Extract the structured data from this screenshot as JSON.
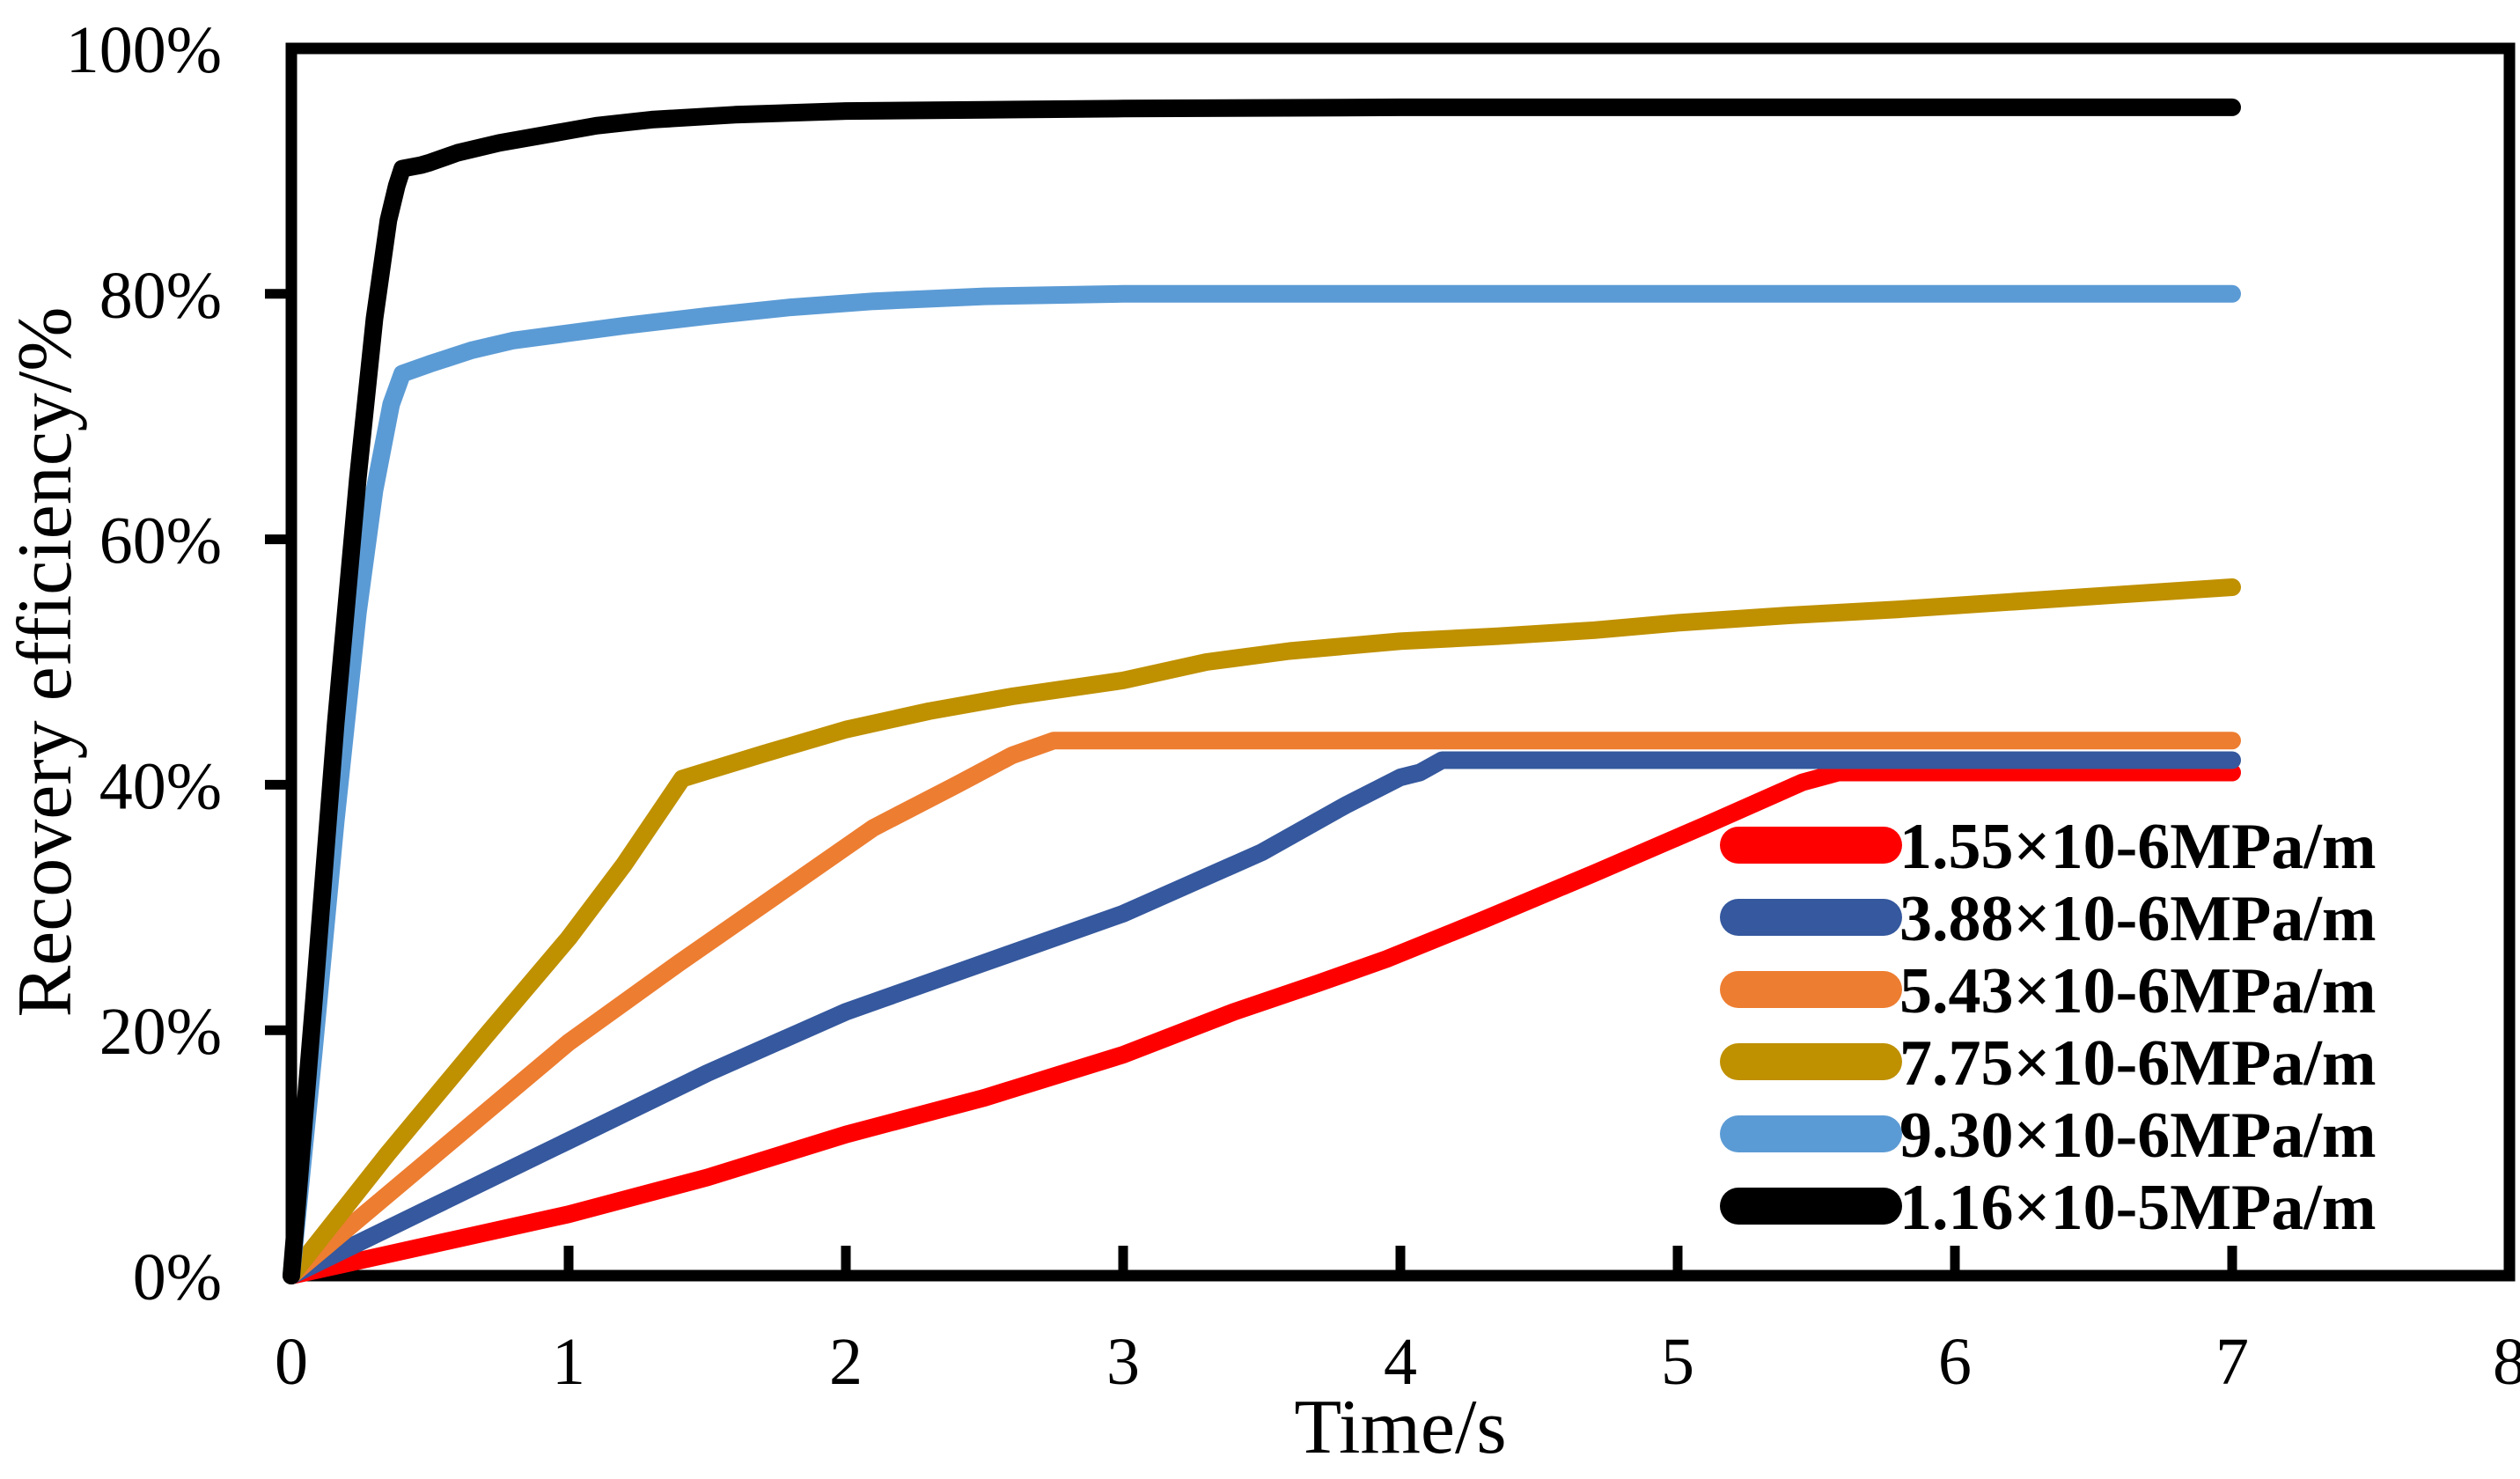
{
  "figure": {
    "background": "#FFFFFF",
    "frame_color": "#000000"
  },
  "chart_data": {
    "type": "line",
    "title": "",
    "xlabel": "Time/s",
    "ylabel": "Recovery efficiency/%",
    "xlim": [
      0,
      8
    ],
    "ylim": [
      0,
      100
    ],
    "grid": "off",
    "legend_position": "inside-right-middle",
    "x_ticks": [
      0,
      1,
      2,
      3,
      4,
      5,
      6,
      7,
      8
    ],
    "x_tick_labels": [
      "0",
      "1",
      "2",
      "3",
      "4",
      "5",
      "6",
      "7",
      "8"
    ],
    "x_minor_ticks": [
      1,
      2,
      3,
      4,
      5,
      6,
      7
    ],
    "y_ticks": [
      0,
      20,
      40,
      60,
      80,
      100
    ],
    "y_tick_labels": [
      "0%",
      "20%",
      "40%",
      "60%",
      "80%",
      "100%"
    ],
    "y_axis_tick_marks": [
      20,
      40,
      60,
      80
    ],
    "series": [
      {
        "name": "1.55×10-6MPa/m",
        "color": "#FF0000",
        "points": [
          [
            0,
            0
          ],
          [
            0.5,
            2.5
          ],
          [
            1,
            5
          ],
          [
            1.5,
            8
          ],
          [
            2,
            11.5
          ],
          [
            2.5,
            14.5
          ],
          [
            3,
            18
          ],
          [
            3.4,
            21.5
          ],
          [
            3.7,
            23.8
          ],
          [
            3.95,
            25.8
          ],
          [
            4.3,
            29
          ],
          [
            4.7,
            32.8
          ],
          [
            5.1,
            36.7
          ],
          [
            5.45,
            40.2
          ],
          [
            5.58,
            41
          ],
          [
            6,
            41
          ],
          [
            6.5,
            41
          ],
          [
            7,
            41
          ]
        ]
      },
      {
        "name": "3.88×10-6MPa/m",
        "color": "#35589E",
        "points": [
          [
            0,
            0
          ],
          [
            0.5,
            5.5
          ],
          [
            1,
            11
          ],
          [
            1.5,
            16.5
          ],
          [
            2,
            21.5
          ],
          [
            2.5,
            25.5
          ],
          [
            3,
            29.5
          ],
          [
            3.5,
            34.5
          ],
          [
            3.8,
            38.3
          ],
          [
            4.0,
            40.6
          ],
          [
            4.07,
            41
          ],
          [
            4.15,
            42
          ],
          [
            4.5,
            42
          ],
          [
            5,
            42
          ],
          [
            6,
            42
          ],
          [
            7,
            42
          ]
        ]
      },
      {
        "name": "5.43×10-6MPa/m",
        "color": "#ED7D31",
        "points": [
          [
            0,
            0
          ],
          [
            0.5,
            9.5
          ],
          [
            1,
            19
          ],
          [
            1.4,
            25.5
          ],
          [
            1.75,
            31
          ],
          [
            2.1,
            36.5
          ],
          [
            2.4,
            40
          ],
          [
            2.6,
            42.4
          ],
          [
            2.75,
            43.6
          ],
          [
            3,
            43.6
          ],
          [
            4,
            43.6
          ],
          [
            5,
            43.6
          ],
          [
            6,
            43.6
          ],
          [
            7,
            43.6
          ]
        ]
      },
      {
        "name": "7.75×10-6MPa/m",
        "color": "#BF9000",
        "points": [
          [
            0,
            0
          ],
          [
            0.35,
            10
          ],
          [
            0.7,
            19.5
          ],
          [
            1.0,
            27.5
          ],
          [
            1.2,
            33.5
          ],
          [
            1.41,
            40.5
          ],
          [
            1.7,
            42.5
          ],
          [
            2.0,
            44.5
          ],
          [
            2.3,
            46
          ],
          [
            2.6,
            47.2
          ],
          [
            3.0,
            48.5
          ],
          [
            3.3,
            50
          ],
          [
            3.6,
            50.9
          ],
          [
            4.0,
            51.7
          ],
          [
            4.35,
            52.1
          ],
          [
            4.7,
            52.6
          ],
          [
            5.0,
            53.2
          ],
          [
            5.4,
            53.8
          ],
          [
            5.8,
            54.3
          ],
          [
            6.2,
            54.9
          ],
          [
            6.6,
            55.5
          ],
          [
            7.0,
            56.1
          ]
        ]
      },
      {
        "name": "9.30×10-6MPa/m",
        "color": "#5B9BD5",
        "points": [
          [
            0,
            0
          ],
          [
            0.08,
            18
          ],
          [
            0.16,
            37
          ],
          [
            0.24,
            54
          ],
          [
            0.3,
            64
          ],
          [
            0.36,
            71
          ],
          [
            0.4,
            73.5
          ],
          [
            0.5,
            74.3
          ],
          [
            0.65,
            75.4
          ],
          [
            0.8,
            76.2
          ],
          [
            1.0,
            76.8
          ],
          [
            1.2,
            77.4
          ],
          [
            1.5,
            78.2
          ],
          [
            1.8,
            78.9
          ],
          [
            2.1,
            79.4
          ],
          [
            2.5,
            79.8
          ],
          [
            3.0,
            80
          ],
          [
            4,
            80
          ],
          [
            5,
            80
          ],
          [
            6,
            80
          ],
          [
            7,
            80
          ]
        ]
      },
      {
        "name": "1.16×10-5MPa/m",
        "color": "#000000",
        "points": [
          [
            0,
            0
          ],
          [
            0.08,
            22
          ],
          [
            0.16,
            45
          ],
          [
            0.24,
            65
          ],
          [
            0.3,
            78
          ],
          [
            0.35,
            86
          ],
          [
            0.38,
            88.8
          ],
          [
            0.4,
            90.2
          ],
          [
            0.47,
            90.5
          ],
          [
            0.5,
            90.7
          ],
          [
            0.6,
            91.5
          ],
          [
            0.75,
            92.3
          ],
          [
            0.9,
            92.9
          ],
          [
            1.1,
            93.7
          ],
          [
            1.3,
            94.2
          ],
          [
            1.6,
            94.6
          ],
          [
            2.0,
            94.9
          ],
          [
            2.5,
            95
          ],
          [
            3,
            95.1
          ],
          [
            4,
            95.2
          ],
          [
            5,
            95.2
          ],
          [
            6,
            95.2
          ],
          [
            7,
            95.2
          ]
        ]
      }
    ],
    "legend": {
      "entries": [
        {
          "label": "1.55×10-6MPa/m",
          "color": "#FF0000"
        },
        {
          "label": "3.88×10-6MPa/m",
          "color": "#35589E"
        },
        {
          "label": "5.43×10-6MPa/m",
          "color": "#ED7D31"
        },
        {
          "label": "7.75×10-6MPa/m",
          "color": "#BF9000"
        },
        {
          "label": "9.30×10-6MPa/m",
          "color": "#5B9BD5"
        },
        {
          "label": "1.16×10-5MPa/m",
          "color": "#000000"
        }
      ]
    }
  }
}
